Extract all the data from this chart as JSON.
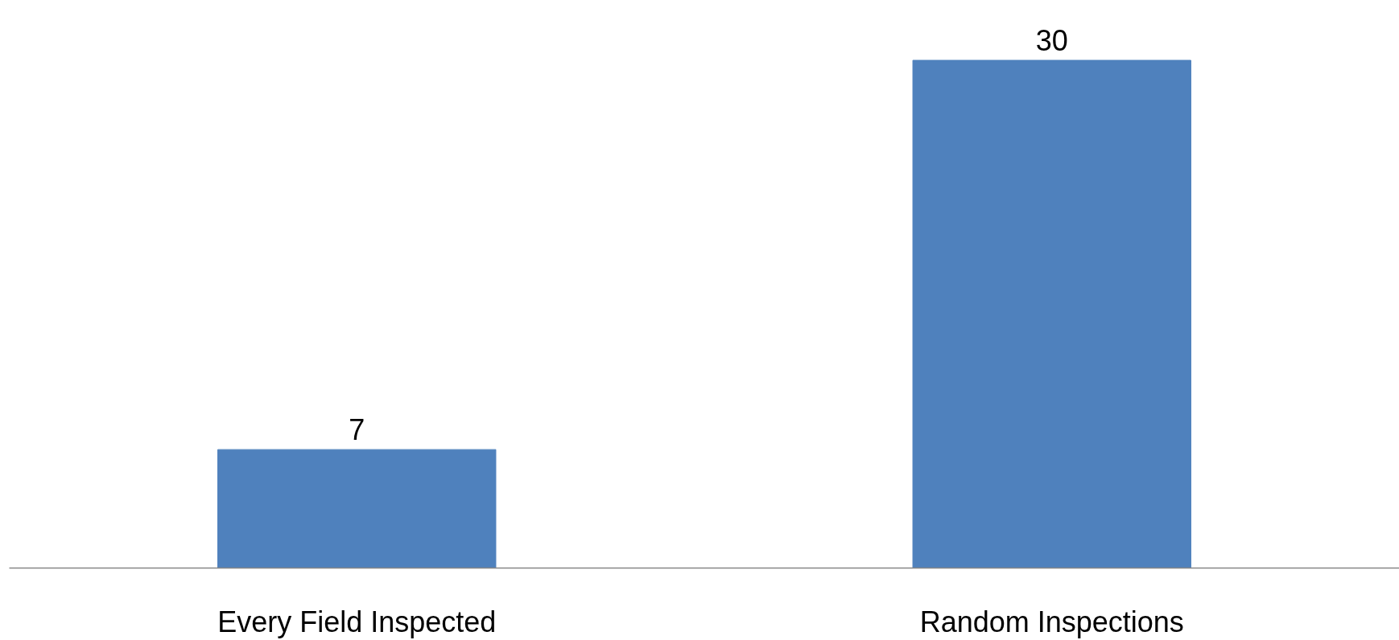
{
  "chart_data": {
    "type": "bar",
    "categories": [
      "Every Field Inspected",
      "Random Inspections"
    ],
    "values": [
      7,
      30
    ],
    "color": "#4f81bd",
    "data_labels": true,
    "grid": false
  }
}
